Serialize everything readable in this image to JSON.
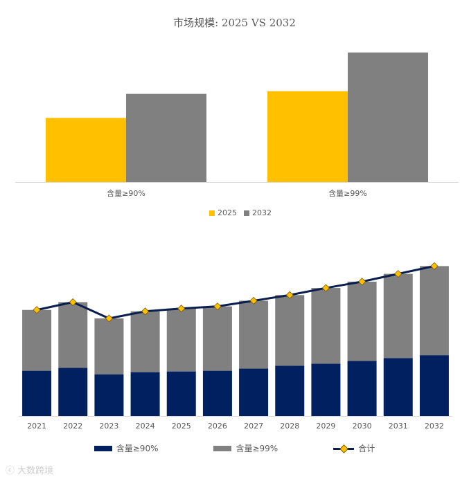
{
  "chart_data": [
    {
      "type": "bar",
      "title": "市场规模: 2025 VS 2032",
      "categories": [
        "含量≥90%",
        "含量≥99%"
      ],
      "series": [
        {
          "name": "2025",
          "values": [
            48,
            68
          ],
          "color": "#FFC000"
        },
        {
          "name": "2032",
          "values": [
            66,
            97
          ],
          "color": "#808080"
        }
      ],
      "ylim": [
        0,
        100
      ],
      "grid": false,
      "legend": "bottom"
    },
    {
      "type": "bar",
      "stacked": true,
      "categories": [
        "2021",
        "2022",
        "2023",
        "2024",
        "2025",
        "2026",
        "2027",
        "2028",
        "2029",
        "2030",
        "2031",
        "2032"
      ],
      "series": [
        {
          "name": "含量≥90%",
          "values": [
            32,
            34,
            29.5,
            31,
            31.5,
            32,
            33.5,
            35.5,
            37,
            39,
            41,
            43
          ],
          "color": "#002060"
        },
        {
          "name": "含量≥99%",
          "values": [
            43,
            46.5,
            39.5,
            43,
            44.5,
            45.5,
            48,
            50,
            53.5,
            56,
            59.5,
            63
          ],
          "color": "#808080"
        }
      ],
      "line_series": {
        "name": "合计",
        "values": [
          75,
          80.5,
          69,
          74,
          76,
          77.5,
          81.5,
          85.5,
          90.5,
          95,
          100.5,
          106
        ],
        "color": "#0B1F4F",
        "marker_color": "#FFC000"
      },
      "ylim": [
        0,
        115
      ],
      "grid": false,
      "legend": "bottom"
    }
  ],
  "legend_top": [
    "2025",
    "2032"
  ],
  "legend_bottom": [
    "含量≥90%",
    "含量≥99%",
    "合计"
  ],
  "watermark": "大数跨境"
}
